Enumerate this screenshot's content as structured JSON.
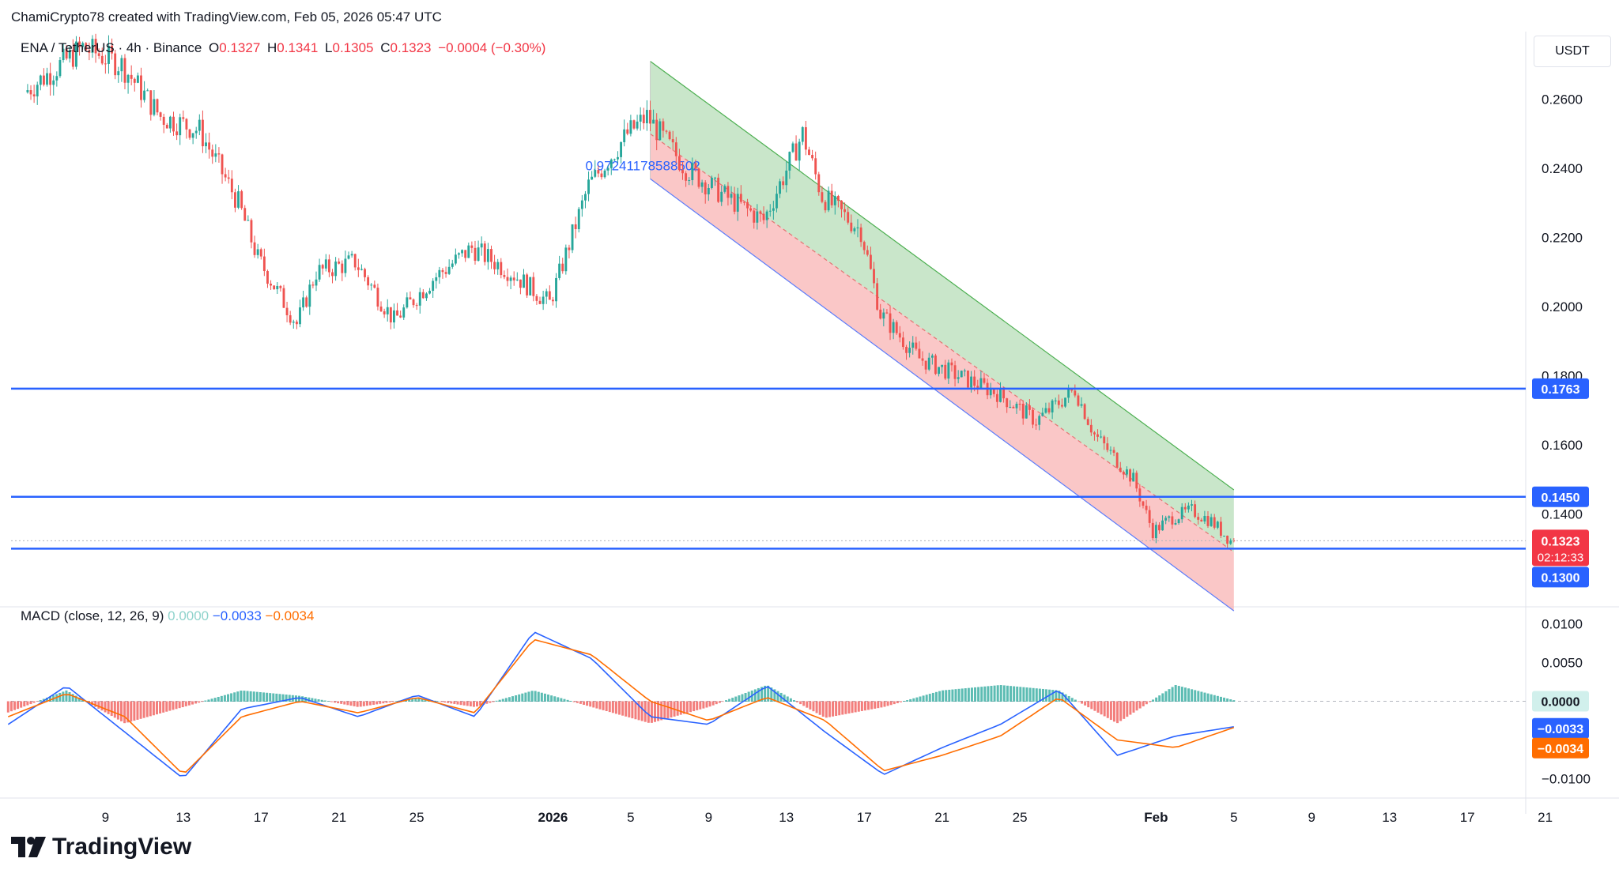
{
  "attribution": "ChamiCrypto78 created with TradingView.com, Feb 05, 2026 05:47 UTC",
  "legend": {
    "symbol": "ENA / TetherUS · 4h · Binance",
    "o_label": "O",
    "o": "0.1327",
    "h_label": "H",
    "h": "0.1341",
    "l_label": "L",
    "l": "0.1305",
    "c_label": "C",
    "c": "0.1323",
    "change": "−0.0004 (−0.30%)"
  },
  "unit_button": "USDT",
  "channel_label": "0.97241178588502",
  "macd_legend": {
    "name": "MACD (close, 12, 26, 9)",
    "hist": "0.0000",
    "macd": "−0.0033",
    "signal": "−0.0034"
  },
  "price_badges": {
    "level_1763": "0.1763",
    "level_1450": "0.1450",
    "last_price": "0.1323",
    "countdown": "02:12:33",
    "level_1300": "0.1300",
    "macd_hist": "0.0000",
    "macd_line": "−0.0033",
    "macd_signal": "−0.0034"
  },
  "branding": "TradingView",
  "colors": {
    "up": "#26a69a",
    "down": "#ef5350",
    "level_line": "#2962ff",
    "macd": "#2962ff",
    "signal": "#ff6d00",
    "channel_green": "#a5d6a7",
    "channel_red": "#f7a9a9"
  },
  "chart_data": [
    {
      "type": "candlestick",
      "symbol": "ENA / TetherUS",
      "interval": "4h",
      "y_ticks": [
        "0.2600",
        "0.2400",
        "0.2200",
        "0.2000",
        "0.1800",
        "0.1600",
        "0.1400"
      ],
      "x_ticks": [
        "9",
        "13",
        "17",
        "21",
        "25",
        "2026",
        "5",
        "9",
        "13",
        "17",
        "21",
        "25",
        "Feb",
        "5",
        "9",
        "13",
        "17",
        "21"
      ],
      "ylim": [
        0.115,
        0.275
      ],
      "price_path": [
        [
          "Dec 5",
          0.262
        ],
        [
          "Dec 8",
          0.275
        ],
        [
          "Dec 10",
          0.27
        ],
        [
          "Dec 12",
          0.255
        ],
        [
          "Dec 14",
          0.251
        ],
        [
          "Dec 16",
          0.23
        ],
        [
          "Dec 17",
          0.214
        ],
        [
          "Dec 19",
          0.195
        ],
        [
          "Dec 20",
          0.21
        ],
        [
          "Dec 22",
          0.213
        ],
        [
          "Dec 24",
          0.196
        ],
        [
          "Dec 26",
          0.208
        ],
        [
          "Dec 28",
          0.217
        ],
        [
          "Dec 30",
          0.21
        ],
        [
          "Jan 1",
          0.201
        ],
        [
          "Jan 3",
          0.235
        ],
        [
          "Jan 5",
          0.25
        ],
        [
          "Jan 6",
          0.255
        ],
        [
          "Jan 8",
          0.24
        ],
        [
          "Jan 10",
          0.232
        ],
        [
          "Jan 12",
          0.225
        ],
        [
          "Jan 14",
          0.25
        ],
        [
          "Jan 15",
          0.232
        ],
        [
          "Jan 17",
          0.222
        ],
        [
          "Jan 18",
          0.198
        ],
        [
          "Jan 20",
          0.185
        ],
        [
          "Jan 22",
          0.18
        ],
        [
          "Jan 24",
          0.175
        ],
        [
          "Jan 26",
          0.167
        ],
        [
          "Jan 28",
          0.176
        ],
        [
          "Jan 29",
          0.163
        ],
        [
          "Jan 31",
          0.15
        ],
        [
          "Feb 1",
          0.135
        ],
        [
          "Feb 2",
          0.139
        ],
        [
          "Feb 3",
          0.141
        ],
        [
          "Feb 4",
          0.138
        ],
        [
          "Feb 5",
          0.1323
        ]
      ],
      "horizontal_levels": [
        0.1763,
        0.145,
        0.13
      ],
      "last_price": 0.1323,
      "regression_channel": {
        "start": "Jan 6",
        "end": "Feb 5",
        "upper": [
          0.271,
          0.147
        ],
        "middle": [
          0.25,
          0.129
        ],
        "lower": [
          0.237,
          0.112
        ]
      }
    },
    {
      "type": "line",
      "title": "MACD (close, 12, 26, 9)",
      "y_ticks": [
        "0.0100",
        "0.0050",
        "0.0000",
        "-0.0100"
      ],
      "ylim": [
        -0.0115,
        0.0115
      ],
      "series": [
        {
          "name": "MACD",
          "values": [
            -0.003,
            0.002,
            -0.004,
            -0.01,
            -0.001,
            0.0005,
            -0.002,
            0.0008,
            -0.002,
            0.009,
            0.0055,
            -0.002,
            -0.003,
            0.002,
            -0.004,
            -0.0095,
            -0.006,
            -0.003,
            0.0015,
            -0.007,
            -0.0045,
            -0.0033
          ]
        },
        {
          "name": "Signal",
          "values": [
            -0.002,
            0.001,
            -0.002,
            -0.0095,
            -0.002,
            0.0,
            -0.0015,
            0.0005,
            -0.0015,
            0.008,
            0.006,
            0.0,
            -0.0025,
            0.0005,
            -0.0025,
            -0.009,
            -0.007,
            -0.0045,
            0.0005,
            -0.005,
            -0.006,
            -0.0034
          ]
        }
      ]
    }
  ]
}
